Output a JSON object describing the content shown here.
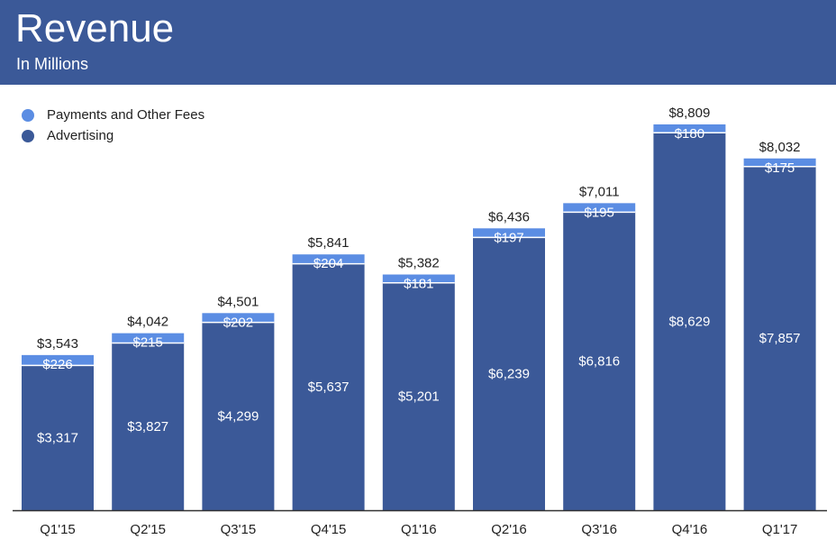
{
  "header": {
    "title": "Revenue",
    "subtitle": "In Millions"
  },
  "colors": {
    "header_bg": "#3b5998",
    "advertising": "#3b5998",
    "payments": "#5b8de3",
    "text_dark": "#222222",
    "text_light": "#ffffff"
  },
  "legend": [
    {
      "label": "Payments and Other Fees",
      "color": "#5b8de3"
    },
    {
      "label": "Advertising",
      "color": "#3b5998"
    }
  ],
  "chart_data": {
    "type": "bar",
    "stacked": true,
    "categories": [
      "Q1'15",
      "Q2'15",
      "Q3'15",
      "Q4'15",
      "Q1'16",
      "Q2'16",
      "Q3'16",
      "Q4'16",
      "Q1'17"
    ],
    "series": [
      {
        "name": "Advertising",
        "values": [
          3317,
          3827,
          4299,
          5637,
          5201,
          6239,
          6816,
          8629,
          7857
        ],
        "labels": [
          "$3,317",
          "$3,827",
          "$4,299",
          "$5,637",
          "$5,201",
          "$6,239",
          "$6,816",
          "$8,629",
          "$7,857"
        ]
      },
      {
        "name": "Payments and Other Fees",
        "values": [
          226,
          215,
          202,
          204,
          181,
          197,
          195,
          180,
          175
        ],
        "labels": [
          "$226",
          "$215",
          "$202",
          "$204",
          "$181",
          "$197",
          "$195",
          "$180",
          "$175"
        ]
      }
    ],
    "totals": [
      3543,
      4042,
      4501,
      5841,
      5382,
      6436,
      7011,
      8809,
      8032
    ],
    "total_labels": [
      "$3,543",
      "$4,042",
      "$4,501",
      "$5,841",
      "$5,382",
      "$6,436",
      "$7,011",
      "$8,809",
      "$8,032"
    ],
    "title": "Revenue",
    "subtitle": "In Millions",
    "grid": false,
    "legend_position": "top-left"
  }
}
